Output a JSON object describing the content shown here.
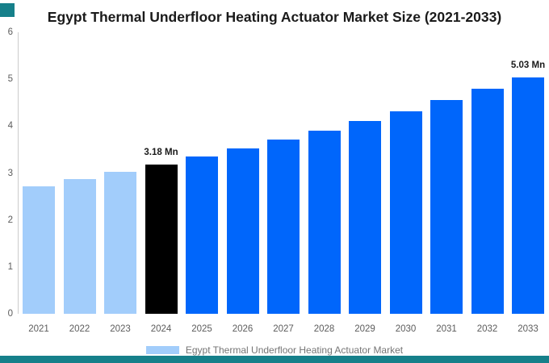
{
  "accent": {
    "color": "#16808A"
  },
  "colors": {
    "historical_bar": "#A2CDFB",
    "highlight_bar": "#000000",
    "forecast_bar": "#0066FB",
    "axis_line": "#cccccc",
    "tick_text": "#5c5c5c",
    "title_text": "#1a1a1a",
    "legend_text": "#757575"
  },
  "chart_data": {
    "type": "bar",
    "title": "Egypt Thermal Underfloor Heating Actuator Market Size (2021-2033)",
    "categories": [
      "2021",
      "2022",
      "2023",
      "2024",
      "2025",
      "2026",
      "2027",
      "2028",
      "2029",
      "2030",
      "2031",
      "2032",
      "2033"
    ],
    "values": [
      2.72,
      2.87,
      3.02,
      3.18,
      3.35,
      3.52,
      3.71,
      3.9,
      4.11,
      4.32,
      4.55,
      4.79,
      5.03
    ],
    "bar_colors": [
      "#A2CDFB",
      "#A2CDFB",
      "#A2CDFB",
      "#000000",
      "#0066FB",
      "#0066FB",
      "#0066FB",
      "#0066FB",
      "#0066FB",
      "#0066FB",
      "#0066FB",
      "#0066FB",
      "#0066FB"
    ],
    "data_labels": [
      null,
      null,
      null,
      "3.18 Mn",
      null,
      null,
      null,
      null,
      null,
      null,
      null,
      null,
      "5.03 Mn"
    ],
    "unit": "Mn",
    "ylim": [
      0,
      6
    ],
    "yticks": [
      0,
      1,
      2,
      3,
      4,
      5,
      6
    ],
    "grid": false,
    "xlabel": "",
    "ylabel": "",
    "legend": {
      "position": "bottom",
      "entries": [
        {
          "label": "Egypt Thermal Underfloor Heating Actuator Market",
          "swatch_color": "#A2CDFB"
        }
      ]
    }
  }
}
